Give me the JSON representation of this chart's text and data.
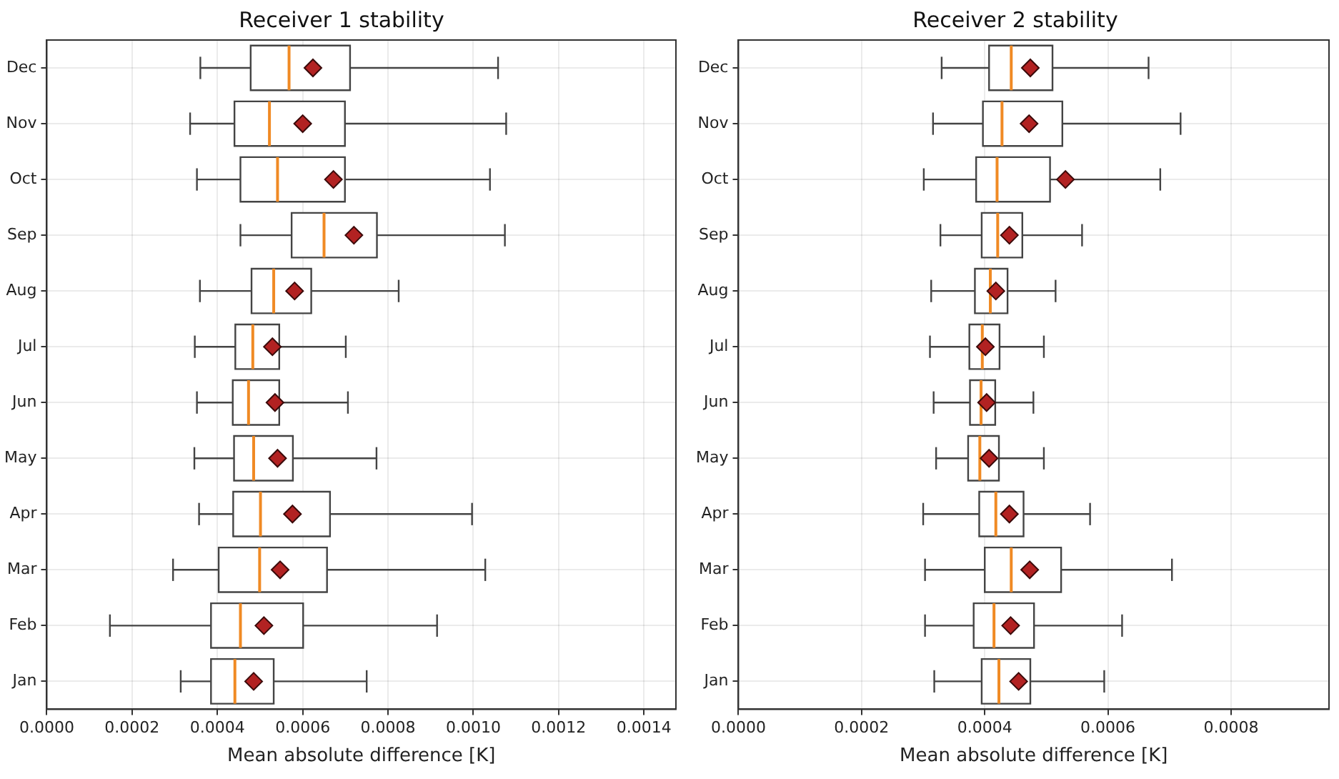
{
  "chart_data": [
    {
      "type": "box",
      "title": "Receiver 1 stability",
      "xlabel": "Mean absolute difference [K]",
      "orientation": "horizontal",
      "grid": true,
      "marker": "diamond",
      "categories": [
        "Dec",
        "Nov",
        "Oct",
        "Sep",
        "Aug",
        "Jul",
        "Jun",
        "May",
        "Apr",
        "Mar",
        "Feb",
        "Jan"
      ],
      "xlim": [
        0,
        0.001475
      ],
      "xticks": [
        {
          "value": 0,
          "label": "0.0000"
        },
        {
          "value": 0.0002,
          "label": "0.0002"
        },
        {
          "value": 0.0004,
          "label": "0.0004"
        },
        {
          "value": 0.0006,
          "label": "0.0006"
        },
        {
          "value": 0.0008,
          "label": "0.0008"
        },
        {
          "value": 0.001,
          "label": "0.0010"
        },
        {
          "value": 0.0012,
          "label": "0.0012"
        },
        {
          "value": 0.0014,
          "label": "0.0014"
        }
      ],
      "boxes": [
        {
          "low": 0.00036,
          "q1": 0.000478,
          "median": 0.000568,
          "q3": 0.000711,
          "high": 0.001058,
          "mean": 0.000624
        },
        {
          "low": 0.000336,
          "q1": 0.00044,
          "median": 0.000522,
          "q3": 0.000699,
          "high": 0.001077,
          "mean": 0.0006
        },
        {
          "low": 0.000352,
          "q1": 0.000454,
          "median": 0.000541,
          "q3": 0.000699,
          "high": 0.001039,
          "mean": 0.000672
        },
        {
          "low": 0.000454,
          "q1": 0.000574,
          "median": 0.00065,
          "q3": 0.000774,
          "high": 0.001074,
          "mean": 0.00072
        },
        {
          "low": 0.000359,
          "q1": 0.00048,
          "median": 0.000532,
          "q3": 0.00062,
          "high": 0.000825,
          "mean": 0.000581
        },
        {
          "low": 0.000347,
          "q1": 0.000442,
          "median": 0.000483,
          "q3": 0.000545,
          "high": 0.000701,
          "mean": 0.000529
        },
        {
          "low": 0.000352,
          "q1": 0.000436,
          "median": 0.000473,
          "q3": 0.000545,
          "high": 0.000706,
          "mean": 0.000535
        },
        {
          "low": 0.000346,
          "q1": 0.000439,
          "median": 0.000485,
          "q3": 0.000577,
          "high": 0.000773,
          "mean": 0.000541
        },
        {
          "low": 0.000357,
          "q1": 0.000437,
          "median": 0.000501,
          "q3": 0.000664,
          "high": 0.000997,
          "mean": 0.000576
        },
        {
          "low": 0.000296,
          "q1": 0.000403,
          "median": 0.000499,
          "q3": 0.000657,
          "high": 0.001028,
          "mean": 0.000547
        },
        {
          "low": 0.000148,
          "q1": 0.000385,
          "median": 0.000454,
          "q3": 0.000601,
          "high": 0.000915,
          "mean": 0.000509
        },
        {
          "low": 0.000314,
          "q1": 0.000385,
          "median": 0.000441,
          "q3": 0.000532,
          "high": 0.00075,
          "mean": 0.000485
        }
      ]
    },
    {
      "type": "box",
      "title": "Receiver 2 stability",
      "xlabel": "Mean absolute difference [K]",
      "orientation": "horizontal",
      "grid": true,
      "marker": "diamond",
      "categories": [
        "Dec",
        "Nov",
        "Oct",
        "Sep",
        "Aug",
        "Jul",
        "Jun",
        "May",
        "Apr",
        "Mar",
        "Feb",
        "Jan"
      ],
      "xlim": [
        0,
        0.000959
      ],
      "xticks": [
        {
          "value": 0,
          "label": "0.0000"
        },
        {
          "value": 0.0002,
          "label": "0.0002"
        },
        {
          "value": 0.0004,
          "label": "0.0004"
        },
        {
          "value": 0.0006,
          "label": "0.0006"
        },
        {
          "value": 0.0008,
          "label": "0.0008"
        }
      ],
      "boxes": [
        {
          "low": 0.00033,
          "q1": 0.000407,
          "median": 0.000443,
          "q3": 0.00051,
          "high": 0.000666,
          "mean": 0.000474
        },
        {
          "low": 0.000316,
          "q1": 0.000397,
          "median": 0.000428,
          "q3": 0.000526,
          "high": 0.000718,
          "mean": 0.000472
        },
        {
          "low": 0.000301,
          "q1": 0.000386,
          "median": 0.00042,
          "q3": 0.000506,
          "high": 0.000685,
          "mean": 0.000531
        },
        {
          "low": 0.000328,
          "q1": 0.000395,
          "median": 0.000421,
          "q3": 0.000461,
          "high": 0.000558,
          "mean": 0.00044
        },
        {
          "low": 0.000313,
          "q1": 0.000384,
          "median": 0.000409,
          "q3": 0.000437,
          "high": 0.000515,
          "mean": 0.000418
        },
        {
          "low": 0.000311,
          "q1": 0.000375,
          "median": 0.000396,
          "q3": 0.000424,
          "high": 0.000496,
          "mean": 0.000401
        },
        {
          "low": 0.000317,
          "q1": 0.000376,
          "median": 0.000394,
          "q3": 0.000417,
          "high": 0.000479,
          "mean": 0.000403
        },
        {
          "low": 0.000321,
          "q1": 0.000373,
          "median": 0.000392,
          "q3": 0.000423,
          "high": 0.000496,
          "mean": 0.000407
        },
        {
          "low": 0.0003,
          "q1": 0.000391,
          "median": 0.000418,
          "q3": 0.000463,
          "high": 0.000571,
          "mean": 0.00044
        },
        {
          "low": 0.000303,
          "q1": 0.0004,
          "median": 0.000443,
          "q3": 0.000524,
          "high": 0.000704,
          "mean": 0.000473
        },
        {
          "low": 0.000303,
          "q1": 0.000382,
          "median": 0.000415,
          "q3": 0.00048,
          "high": 0.000623,
          "mean": 0.000442
        },
        {
          "low": 0.000318,
          "q1": 0.000395,
          "median": 0.000423,
          "q3": 0.000474,
          "high": 0.000594,
          "mean": 0.000455
        }
      ]
    }
  ]
}
